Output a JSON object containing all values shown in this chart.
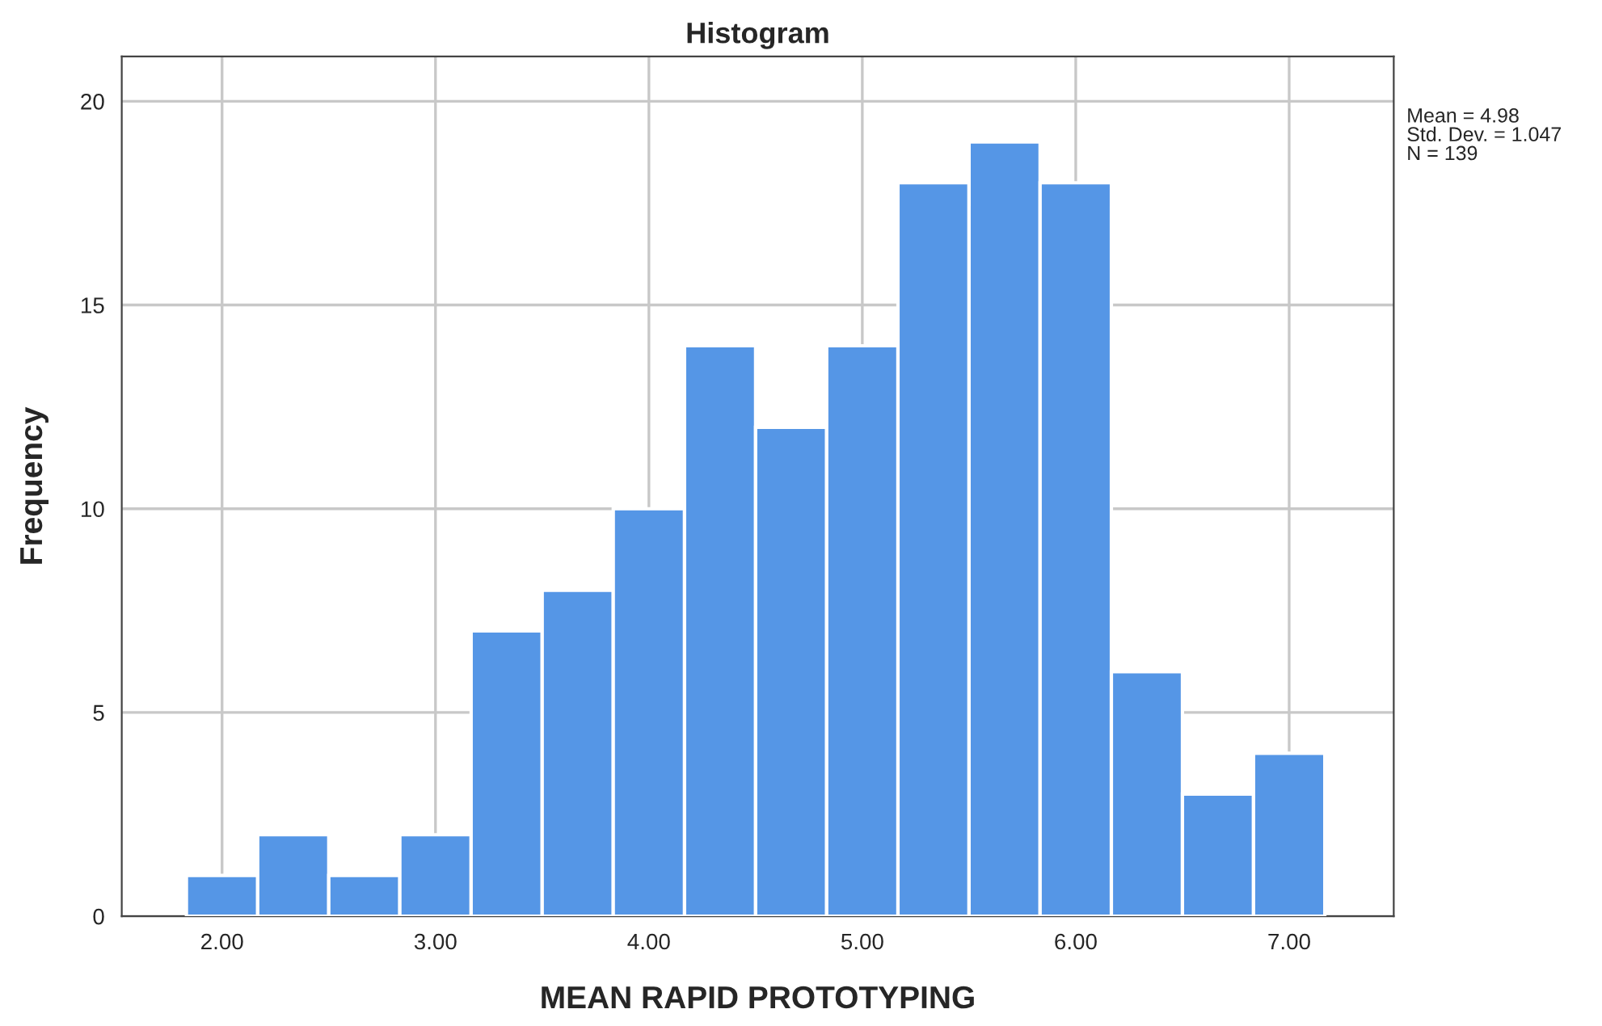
{
  "chart_data": {
    "type": "histogram",
    "title": "Histogram",
    "xlabel": "MEAN RAPID PROTOTYPING",
    "ylabel": "Frequency",
    "bins": [
      1.833,
      2.167,
      2.5,
      2.833,
      3.167,
      3.5,
      3.833,
      4.167,
      4.5,
      4.833,
      5.167,
      5.5,
      5.833,
      6.167,
      6.5,
      6.833,
      7.167
    ],
    "values": [
      1,
      2,
      1,
      2,
      7,
      8,
      10,
      14,
      12,
      14,
      18,
      19,
      18,
      6,
      3,
      4
    ],
    "color": "#5596e6",
    "xlim": [
      1.53,
      7.49
    ],
    "ylim": [
      0,
      21.1
    ],
    "xticks": [
      {
        "value": 2,
        "label": "2.00"
      },
      {
        "value": 3,
        "label": "3.00"
      },
      {
        "value": 4,
        "label": "4.00"
      },
      {
        "value": 5,
        "label": "5.00"
      },
      {
        "value": 6,
        "label": "6.00"
      },
      {
        "value": 7,
        "label": "7.00"
      }
    ],
    "yticks": [
      0,
      5,
      10,
      15,
      20
    ],
    "grid": true,
    "annotations": [
      "Mean = 4.98",
      "Std. Dev. = 1.047",
      "N = 139"
    ]
  }
}
